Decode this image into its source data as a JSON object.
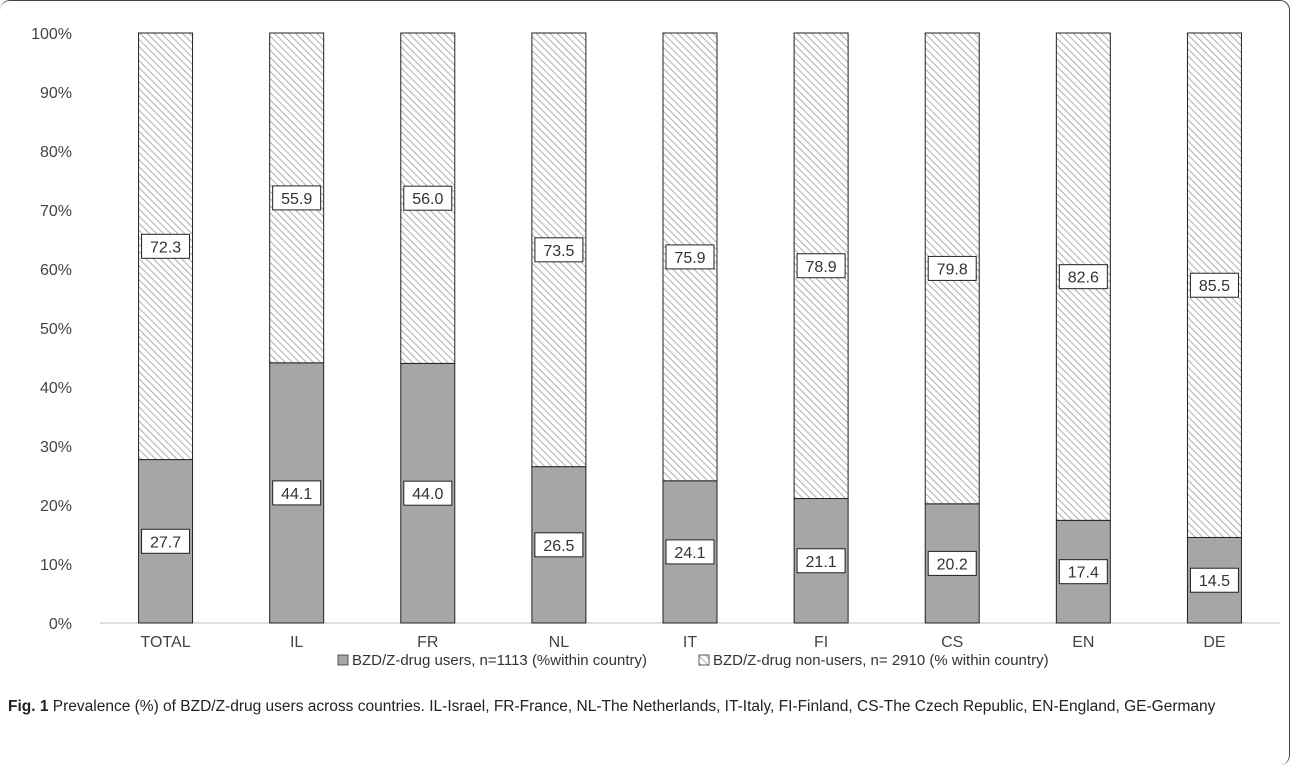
{
  "chart_data": {
    "type": "bar",
    "stacked": true,
    "categories": [
      "TOTAL",
      "IL",
      "FR",
      "NL",
      "IT",
      "FI",
      "CS",
      "EN",
      "DE"
    ],
    "series": [
      {
        "name": "BZD/Z-drug users, n=1113 (%within country)",
        "values": [
          27.7,
          44.1,
          44.0,
          26.5,
          24.1,
          21.1,
          20.2,
          17.4,
          14.5
        ],
        "labels": [
          "27.7",
          "44.1",
          "44.0",
          "26.5",
          "24.1",
          "21.1",
          "20.2",
          "17.4",
          "14.5"
        ],
        "fill": "solid",
        "color": "#a6a6a6"
      },
      {
        "name": "BZD/Z-drug non-users, n= 2910 (% within country)",
        "values": [
          72.3,
          55.9,
          56.0,
          73.5,
          75.9,
          78.9,
          79.8,
          82.6,
          85.5
        ],
        "labels": [
          "72.3",
          "55.9",
          "56.0",
          "73.5",
          "75.9",
          "78.9",
          "79.8",
          "82.6",
          "85.5"
        ],
        "fill": "hatched",
        "color": "#a6a6a6"
      }
    ],
    "ylim": [
      0,
      100
    ],
    "yticks": [
      "0%",
      "10%",
      "20%",
      "30%",
      "40%",
      "50%",
      "60%",
      "70%",
      "80%",
      "90%",
      "100%"
    ],
    "grid": false,
    "legend": "bottom"
  },
  "caption": {
    "label": "Fig. 1",
    "text": " Prevalence (%) of BZD/Z-drug users across countries. IL-Israel, FR-France, NL-The Netherlands, IT-Italy, FI-Finland, CS-The Czech Republic, EN-England, GE-Germany"
  }
}
